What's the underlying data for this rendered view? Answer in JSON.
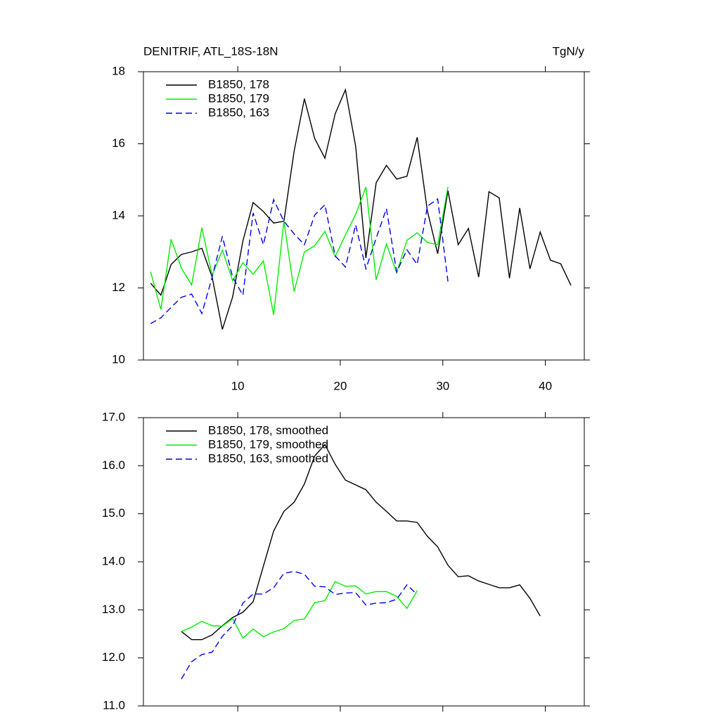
{
  "chart_data": [
    {
      "type": "line",
      "title": "DENITRIF, ATL_18S-18N",
      "units": "TgN/y",
      "xlim": [
        0.8,
        43.8
      ],
      "xticks": [
        10,
        20,
        30,
        40
      ],
      "xtick_labels": true,
      "ylim": [
        10,
        18
      ],
      "yticks": [
        10,
        12,
        14,
        16,
        18
      ],
      "legend": "top-left",
      "series": [
        {
          "name": "B1850, 178",
          "color": "#000000",
          "dash": false,
          "x": [
            1.5,
            2.5,
            3.5,
            4.5,
            5.5,
            6.5,
            7.5,
            8.5,
            9.5,
            10.5,
            11.5,
            12.5,
            13.5,
            14.5,
            15.5,
            16.5,
            17.5,
            18.5,
            19.5,
            20.5,
            21.5,
            22.5,
            23.5,
            24.5,
            25.5,
            26.5,
            27.5,
            28.5,
            29.5,
            30.5,
            31.5,
            32.5,
            33.5,
            34.5,
            35.5,
            36.5,
            37.5,
            38.5,
            39.5,
            40.5,
            41.5,
            42.5
          ],
          "values": [
            12.13,
            11.8,
            12.65,
            12.93,
            13.0,
            13.1,
            12.3,
            10.85,
            11.75,
            13.3,
            14.37,
            14.12,
            13.8,
            13.85,
            15.8,
            17.25,
            16.15,
            15.6,
            16.83,
            17.5,
            15.93,
            12.83,
            14.92,
            15.4,
            15.02,
            15.1,
            16.18,
            14.13,
            12.95,
            14.7,
            13.2,
            13.65,
            12.3,
            14.67,
            14.5,
            12.27,
            14.22,
            12.53,
            13.55,
            12.77,
            12.67,
            12.07
          ]
        },
        {
          "name": "B1850, 179",
          "color": "#00ee00",
          "dash": false,
          "x": [
            1.5,
            2.5,
            3.5,
            4.5,
            5.5,
            6.5,
            7.5,
            8.5,
            9.5,
            10.5,
            11.5,
            12.5,
            13.5,
            14.5,
            15.5,
            16.5,
            17.5,
            18.5,
            19.5,
            20.5,
            21.5,
            22.5,
            23.5,
            24.5,
            25.5,
            26.5,
            27.5,
            28.5,
            29.5,
            30.5
          ],
          "values": [
            12.45,
            11.4,
            13.35,
            12.55,
            12.08,
            13.67,
            12.35,
            13.05,
            12.2,
            12.7,
            12.38,
            12.75,
            11.25,
            13.85,
            11.9,
            13.0,
            13.17,
            13.57,
            12.87,
            13.47,
            14.04,
            14.8,
            12.22,
            13.22,
            12.42,
            13.32,
            13.53,
            13.26,
            13.2,
            14.8
          ]
        },
        {
          "name": "B1850, 163",
          "color": "#0000ee",
          "dash": true,
          "x": [
            1.5,
            2.5,
            3.5,
            4.5,
            5.5,
            6.5,
            7.5,
            8.5,
            9.5,
            10.5,
            11.5,
            12.5,
            13.5,
            14.5,
            15.5,
            16.5,
            17.5,
            18.5,
            19.5,
            20.5,
            21.5,
            22.5,
            23.5,
            24.5,
            25.5,
            26.5,
            27.5,
            28.5,
            29.5,
            30.5
          ],
          "values": [
            11.01,
            11.17,
            11.46,
            11.74,
            11.83,
            11.29,
            12.3,
            13.43,
            12.3,
            11.8,
            14.08,
            13.2,
            14.45,
            13.85,
            13.5,
            13.2,
            14.02,
            14.31,
            12.89,
            12.58,
            13.75,
            12.53,
            13.38,
            14.2,
            12.44,
            13.06,
            12.65,
            14.27,
            14.47,
            12.18
          ]
        }
      ]
    },
    {
      "type": "line",
      "xlim": [
        0.8,
        43.8
      ],
      "xticks": [
        10,
        20,
        30,
        40
      ],
      "xtick_labels": false,
      "ylim": [
        11,
        17
      ],
      "yticks": [
        {
          "value": 11,
          "label": "11.0"
        },
        {
          "value": 12,
          "label": "12.0"
        },
        {
          "value": 13,
          "label": "13.0"
        },
        {
          "value": 14,
          "label": "14.0"
        },
        {
          "value": 15,
          "label": "15.0"
        },
        {
          "value": 16,
          "label": "16.0"
        },
        {
          "value": 17,
          "label": "17.0"
        }
      ],
      "legend": "top-left",
      "series": [
        {
          "name": "B1850, 178, smoothed",
          "color": "#000000",
          "dash": false,
          "x": [
            4.5,
            5.5,
            6.5,
            7.5,
            8.5,
            9.5,
            10.5,
            11.5,
            12.5,
            13.5,
            14.5,
            15.5,
            16.5,
            17.5,
            18.5,
            19.5,
            20.5,
            21.5,
            22.5,
            23.5,
            24.5,
            25.5,
            26.5,
            27.5,
            28.5,
            29.5,
            30.5,
            31.5,
            32.5,
            33.5,
            34.5,
            35.5,
            36.5,
            37.5,
            38.5,
            39.5
          ],
          "values": [
            12.55,
            12.38,
            12.38,
            12.48,
            12.67,
            12.84,
            12.95,
            13.17,
            13.91,
            14.64,
            15.05,
            15.24,
            15.62,
            16.2,
            16.44,
            16.03,
            15.7,
            15.6,
            15.5,
            15.24,
            15.05,
            14.85,
            14.85,
            14.82,
            14.53,
            14.31,
            13.93,
            13.69,
            13.71,
            13.6,
            13.53,
            13.46,
            13.46,
            13.52,
            13.24,
            12.87
          ]
        },
        {
          "name": "B1850, 179, smoothed",
          "color": "#00ee00",
          "dash": false,
          "x": [
            4.5,
            5.5,
            6.5,
            7.5,
            8.5,
            9.5,
            10.5,
            11.5,
            12.5,
            13.5,
            14.5,
            15.5,
            16.5,
            17.5,
            18.5,
            19.5,
            20.5,
            21.5,
            22.5,
            23.5,
            24.5,
            25.5,
            26.5,
            27.5
          ],
          "values": [
            12.55,
            12.64,
            12.76,
            12.67,
            12.66,
            12.82,
            12.41,
            12.6,
            12.44,
            12.54,
            12.61,
            12.78,
            12.81,
            13.15,
            13.19,
            13.59,
            13.49,
            13.5,
            13.33,
            13.38,
            13.38,
            13.28,
            13.03,
            13.4
          ]
        },
        {
          "name": "B1850, 163, smoothed",
          "color": "#0000ee",
          "dash": true,
          "x": [
            4.5,
            5.5,
            6.5,
            7.5,
            8.5,
            9.5,
            10.5,
            11.5,
            12.5,
            13.5,
            14.5,
            15.5,
            16.5,
            17.5,
            18.5,
            19.5,
            20.5,
            21.5,
            22.5,
            23.5,
            24.5,
            25.5,
            26.5,
            27.5
          ],
          "values": [
            11.56,
            11.92,
            12.07,
            12.12,
            12.45,
            12.67,
            13.14,
            13.33,
            13.33,
            13.46,
            13.76,
            13.8,
            13.74,
            13.49,
            13.48,
            13.32,
            13.35,
            13.36,
            13.1,
            13.14,
            13.15,
            13.22,
            13.52,
            13.32
          ]
        }
      ]
    }
  ]
}
